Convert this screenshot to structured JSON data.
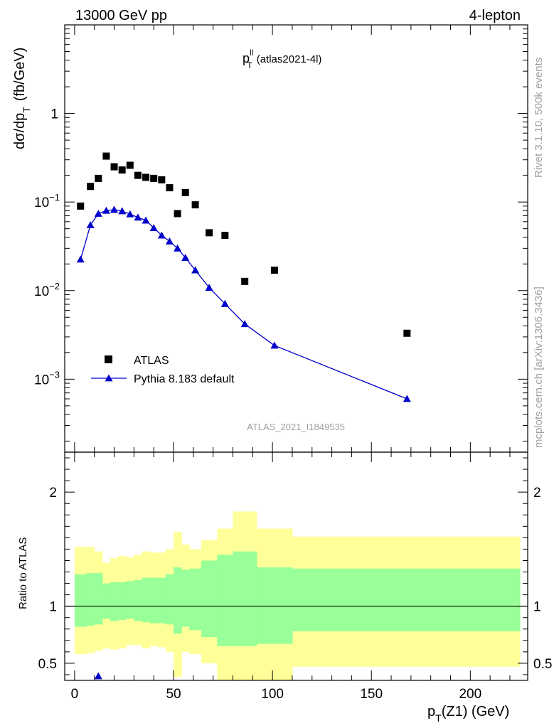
{
  "header": {
    "left": "13000 GeV pp",
    "right": "4-lepton"
  },
  "side_text": {
    "rivet": "Rivet 3.1.10,  500k events",
    "mcplots": "mcplots.cern.ch [arXiv:1306.3436]"
  },
  "chart_data": [
    {
      "type": "scatter",
      "title_main": "p",
      "title_sup": "ll",
      "title_sub": "T",
      "title_suffix": "(atlas2021-4l)",
      "analysis_label": "ATLAS_2021_I1849535",
      "ylabel": "dσ/dp",
      "ylabel_sub": "T",
      "ylabel_unit": "(fb/GeV)",
      "yscale": "log",
      "ylim": [
        0.00015,
        10
      ],
      "xlim": [
        -5,
        229
      ],
      "y_ticks": [
        {
          "value": 1,
          "label": "1"
        },
        {
          "value": 0.1,
          "label": "10",
          "exp": "−1"
        },
        {
          "value": 0.01,
          "label": "10",
          "exp": "−2"
        },
        {
          "value": 0.001,
          "label": "10",
          "exp": "−3"
        }
      ],
      "series": [
        {
          "name": "ATLAS",
          "color": "#000000",
          "marker": "square",
          "x": [
            3,
            8,
            12,
            16,
            20,
            24,
            28,
            32,
            36,
            40,
            44,
            48,
            52,
            56,
            61,
            68,
            76,
            86,
            101,
            168
          ],
          "values": [
            0.09,
            0.15,
            0.185,
            0.33,
            0.25,
            0.23,
            0.26,
            0.2,
            0.19,
            0.185,
            0.178,
            0.145,
            0.074,
            0.128,
            0.093,
            0.045,
            0.042,
            0.0127,
            0.017,
            0.0033
          ]
        },
        {
          "name": "Pythia 8.183 default",
          "color": "#0000cc",
          "marker": "triangle",
          "line": true,
          "x": [
            3,
            8,
            12,
            16,
            20,
            24,
            28,
            32,
            36,
            40,
            44,
            48,
            52,
            56,
            61,
            68,
            76,
            86,
            101,
            168
          ],
          "values": [
            0.0225,
            0.055,
            0.074,
            0.08,
            0.082,
            0.079,
            0.073,
            0.067,
            0.062,
            0.051,
            0.042,
            0.036,
            0.03,
            0.0235,
            0.017,
            0.0108,
            0.0071,
            0.0042,
            0.0024,
            0.0006
          ]
        }
      ]
    },
    {
      "type": "area",
      "ylabel": "Ratio to ATLAS",
      "xlabel": "p",
      "xlabel_sub": "T",
      "xlabel_suffix": "(Z1) (GeV)",
      "xlim": [
        -5,
        229
      ],
      "ylim": [
        0.35,
        2.35
      ],
      "x_ticks": [
        0,
        50,
        100,
        150,
        200
      ],
      "y_ticks": [
        0.5,
        1,
        2
      ],
      "reference_line": 1,
      "bin_edges": [
        0,
        6,
        10,
        14,
        18,
        22,
        26,
        30,
        34,
        38,
        42,
        46,
        50,
        54,
        58,
        64,
        72,
        80,
        92,
        110,
        225
      ],
      "band_outer": {
        "name": "total uncertainty",
        "color": "#ffff99",
        "low": [
          0.58,
          0.59,
          0.61,
          0.63,
          0.62,
          0.63,
          0.66,
          0.66,
          0.63,
          0.65,
          0.64,
          0.6,
          0.38,
          0.6,
          0.58,
          0.5,
          0.35,
          0.3,
          0.28,
          0.47
        ],
        "high": [
          1.52,
          1.52,
          1.48,
          1.38,
          1.42,
          1.44,
          1.43,
          1.45,
          1.48,
          1.47,
          1.47,
          1.5,
          1.65,
          1.54,
          1.5,
          1.58,
          1.68,
          1.83,
          1.68,
          1.61
        ]
      },
      "band_inner": {
        "name": "statistical uncertainty",
        "color": "#99ff99",
        "low": [
          0.82,
          0.83,
          0.84,
          0.89,
          0.87,
          0.88,
          0.89,
          0.87,
          0.86,
          0.85,
          0.85,
          0.84,
          0.76,
          0.82,
          0.79,
          0.73,
          0.65,
          0.65,
          0.67,
          0.78
        ],
        "high": [
          1.28,
          1.29,
          1.29,
          1.2,
          1.21,
          1.21,
          1.22,
          1.23,
          1.25,
          1.25,
          1.25,
          1.28,
          1.34,
          1.32,
          1.33,
          1.4,
          1.45,
          1.48,
          1.34,
          1.33
        ]
      },
      "series": [
        {
          "name": "Pythia 8.183 default",
          "color": "#0000cc",
          "marker": "triangle",
          "x": [
            12
          ],
          "values": [
            0.35
          ]
        }
      ]
    }
  ]
}
